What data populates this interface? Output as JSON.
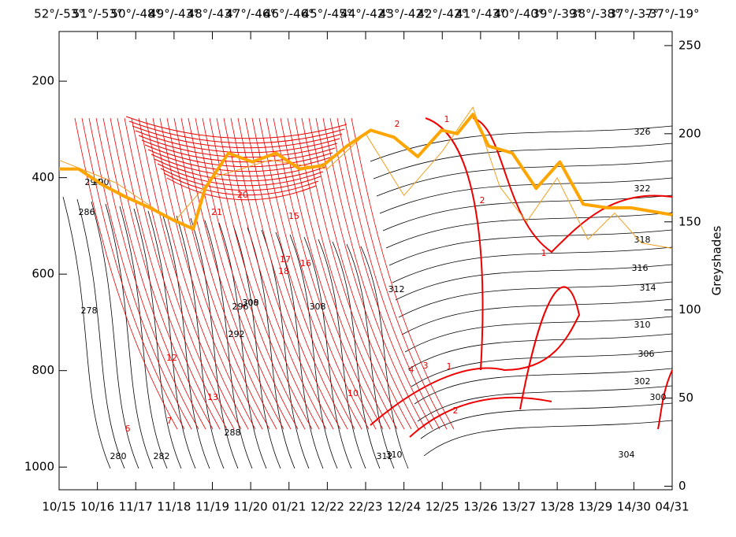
{
  "chart_data": {
    "type": "line",
    "y_axis_right_label": "Greyshades",
    "x": [
      15,
      15.51,
      16.13,
      16.75,
      17.37,
      17.98,
      18.5,
      18.81,
      19.42,
      20.04,
      20.66,
      21.28,
      21.89,
      22.51,
      23.13,
      23.74,
      24.36,
      24.98,
      25.39,
      25.8,
      26.21,
      26.83,
      27.45,
      28.07,
      28.68,
      29.3,
      29.92,
      31
    ],
    "series": [
      {
        "color": "#ffa500",
        "axis": "y2",
        "values": [
          180,
          180,
          171,
          164,
          158,
          151,
          146,
          169,
          189,
          184,
          189,
          180,
          182,
          193,
          202,
          198,
          187,
          202,
          200,
          211,
          193,
          189,
          169,
          184,
          160,
          158,
          158,
          154
        ]
      }
    ],
    "thin_x": [
      15,
      16.5,
      18,
      19,
      20.5,
      22,
      23,
      24,
      25,
      25.8,
      26.5,
      27.2,
      28,
      28.8,
      29.5,
      30.2,
      31
    ],
    "thin_values": [
      185,
      172,
      150,
      175,
      185,
      180,
      200,
      165,
      190,
      215,
      170,
      150,
      175,
      140,
      155,
      138,
      135
    ],
    "xlim": [
      15,
      31
    ],
    "xticks": [
      {
        "value": 15,
        "label": "10/15"
      },
      {
        "value": 16,
        "label": "10/16"
      },
      {
        "value": 17,
        "label": "11/17"
      },
      {
        "value": 18,
        "label": "11/18"
      },
      {
        "value": 19,
        "label": "11/19"
      },
      {
        "value": 20,
        "label": "11/20"
      },
      {
        "value": 21,
        "label": "01/21"
      },
      {
        "value": 22,
        "label": "12/22"
      },
      {
        "value": 23,
        "label": "22/23"
      },
      {
        "value": 24,
        "label": "12/24"
      },
      {
        "value": 25,
        "label": "12/25"
      },
      {
        "value": 26,
        "label": "13/26"
      },
      {
        "value": 27,
        "label": "13/27"
      },
      {
        "value": 28,
        "label": "13/28"
      },
      {
        "value": 29,
        "label": "13/29"
      },
      {
        "value": 30,
        "label": "14/30"
      },
      {
        "value": 31,
        "label": "04/31"
      }
    ],
    "top_labels": [
      "52°/-53°",
      "51°/-53°",
      "50°/-48°",
      "49°/-43°",
      "48°/-43°",
      "47°/-46°",
      "46°/-46°",
      "45°/-45°",
      "44°/-42°",
      "43°/-42°",
      "42°/-42°",
      "41°/-43°",
      "40°/-40°",
      "39°/-39°",
      "38°/-38°",
      "37°/-37°",
      "-37°/-19°"
    ],
    "ylim": [
      1047,
      97
    ],
    "yticks": [
      200,
      400,
      600,
      800,
      1000
    ],
    "y2lim": [
      -2,
      258
    ],
    "y2ticks": [
      0,
      50,
      100,
      150,
      200,
      250
    ],
    "contour_labels_black": [
      "326",
      "322",
      "318",
      "316",
      "314",
      "310",
      "306",
      "302",
      "304",
      "300",
      "312",
      "308",
      "310",
      "312",
      "308",
      "300",
      "296",
      "292",
      "290",
      "286",
      "278",
      "280",
      "282",
      "288",
      "294"
    ],
    "contour_labels_red": [
      "1",
      "1",
      "2",
      "2",
      "3",
      "4",
      "12",
      "17",
      "18",
      "21",
      "20",
      "15",
      "10",
      "6",
      "7",
      "13",
      "16",
      "1",
      "2"
    ]
  }
}
